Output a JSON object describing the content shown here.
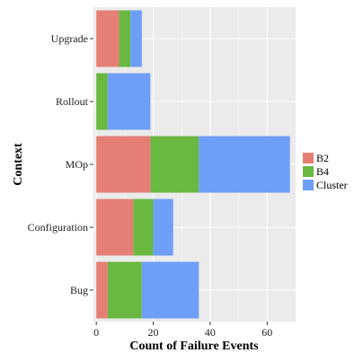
{
  "chart_data": {
    "type": "bar",
    "orientation": "horizontal",
    "stacked": true,
    "categories": [
      "Bug",
      "Configuration",
      "MOp",
      "Rollout",
      "Upgrade"
    ],
    "series": [
      {
        "name": "B2",
        "values": [
          4,
          13,
          19,
          0,
          8
        ],
        "color": "#E57F76"
      },
      {
        "name": "B4",
        "values": [
          12,
          7,
          17,
          4,
          4
        ],
        "color": "#6AB842"
      },
      {
        "name": "Cluster",
        "values": [
          20,
          7,
          32,
          15,
          4
        ],
        "color": "#6E9EF7"
      }
    ],
    "xlabel": "Count of Failure Events",
    "ylabel": "Context",
    "xlim": [
      -1,
      70
    ],
    "xticks": [
      0,
      20,
      40,
      60
    ],
    "legend_position": "right",
    "grid": true,
    "panel_background": "#EBEBEB",
    "grid_color": "#FFFFFF"
  }
}
